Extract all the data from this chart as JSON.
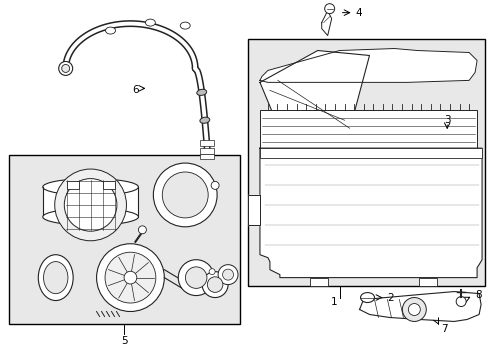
{
  "background_color": "#ffffff",
  "fig_width": 4.89,
  "fig_height": 3.6,
  "dpi": 100,
  "part_color": "#222222",
  "box_fill": "#e8e8e8",
  "white": "#ffffff"
}
